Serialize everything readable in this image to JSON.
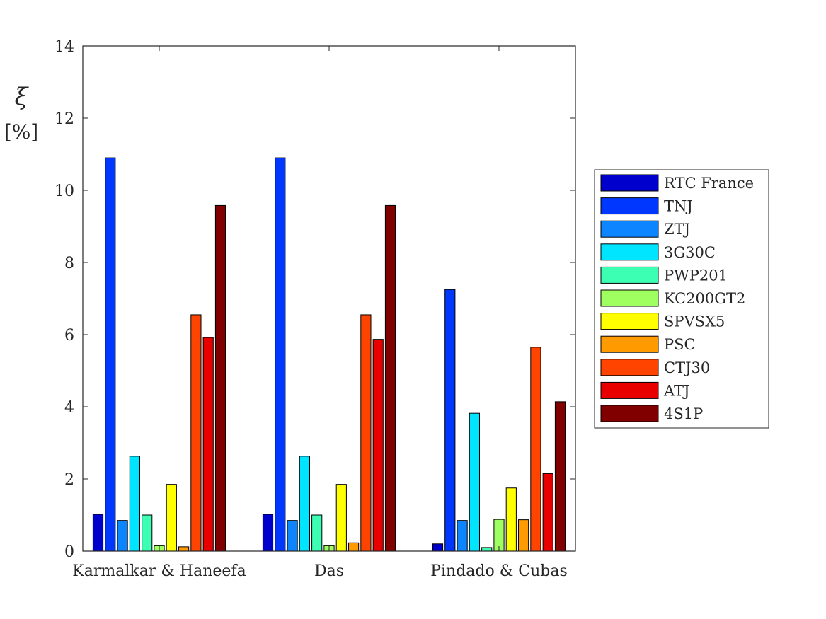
{
  "chart_data": {
    "type": "bar",
    "categories": [
      "Karmalkar & Haneefa",
      "Das",
      "Pindado & Cubas"
    ],
    "series": [
      {
        "name": "RTC France",
        "color": "#0000cd",
        "values": [
          1.02,
          1.02,
          0.2
        ]
      },
      {
        "name": "TNJ",
        "color": "#0037ff",
        "values": [
          10.9,
          10.9,
          7.25
        ]
      },
      {
        "name": "ZTJ",
        "color": "#0d85ff",
        "values": [
          0.85,
          0.85,
          0.85
        ]
      },
      {
        "name": "3G30C",
        "color": "#00e5ff",
        "values": [
          2.63,
          2.63,
          3.82
        ]
      },
      {
        "name": "PWP201",
        "color": "#3dffb4",
        "values": [
          1.0,
          1.0,
          0.1
        ]
      },
      {
        "name": "KC200GT2",
        "color": "#a0ff60",
        "values": [
          0.15,
          0.15,
          0.88
        ]
      },
      {
        "name": "SPVSX5",
        "color": "#ffff00",
        "values": [
          1.85,
          1.85,
          1.75
        ]
      },
      {
        "name": "PSC",
        "color": "#ff9a00",
        "values": [
          0.12,
          0.23,
          0.87
        ]
      },
      {
        "name": "CTJ30",
        "color": "#ff4400",
        "values": [
          6.55,
          6.55,
          5.65
        ]
      },
      {
        "name": "ATJ",
        "color": "#e80000",
        "values": [
          5.92,
          5.87,
          2.15
        ]
      },
      {
        "name": "4S1P",
        "color": "#800000",
        "values": [
          9.58,
          9.58,
          4.14
        ]
      }
    ],
    "yticks": [
      "0",
      "2",
      "4",
      "6",
      "8",
      "10",
      "12",
      "14"
    ],
    "ylim": [
      0,
      14
    ],
    "ylabel_symbol": "ξ",
    "ylabel_unit": "[%]",
    "legend_position": "east-outside",
    "grid": false
  }
}
